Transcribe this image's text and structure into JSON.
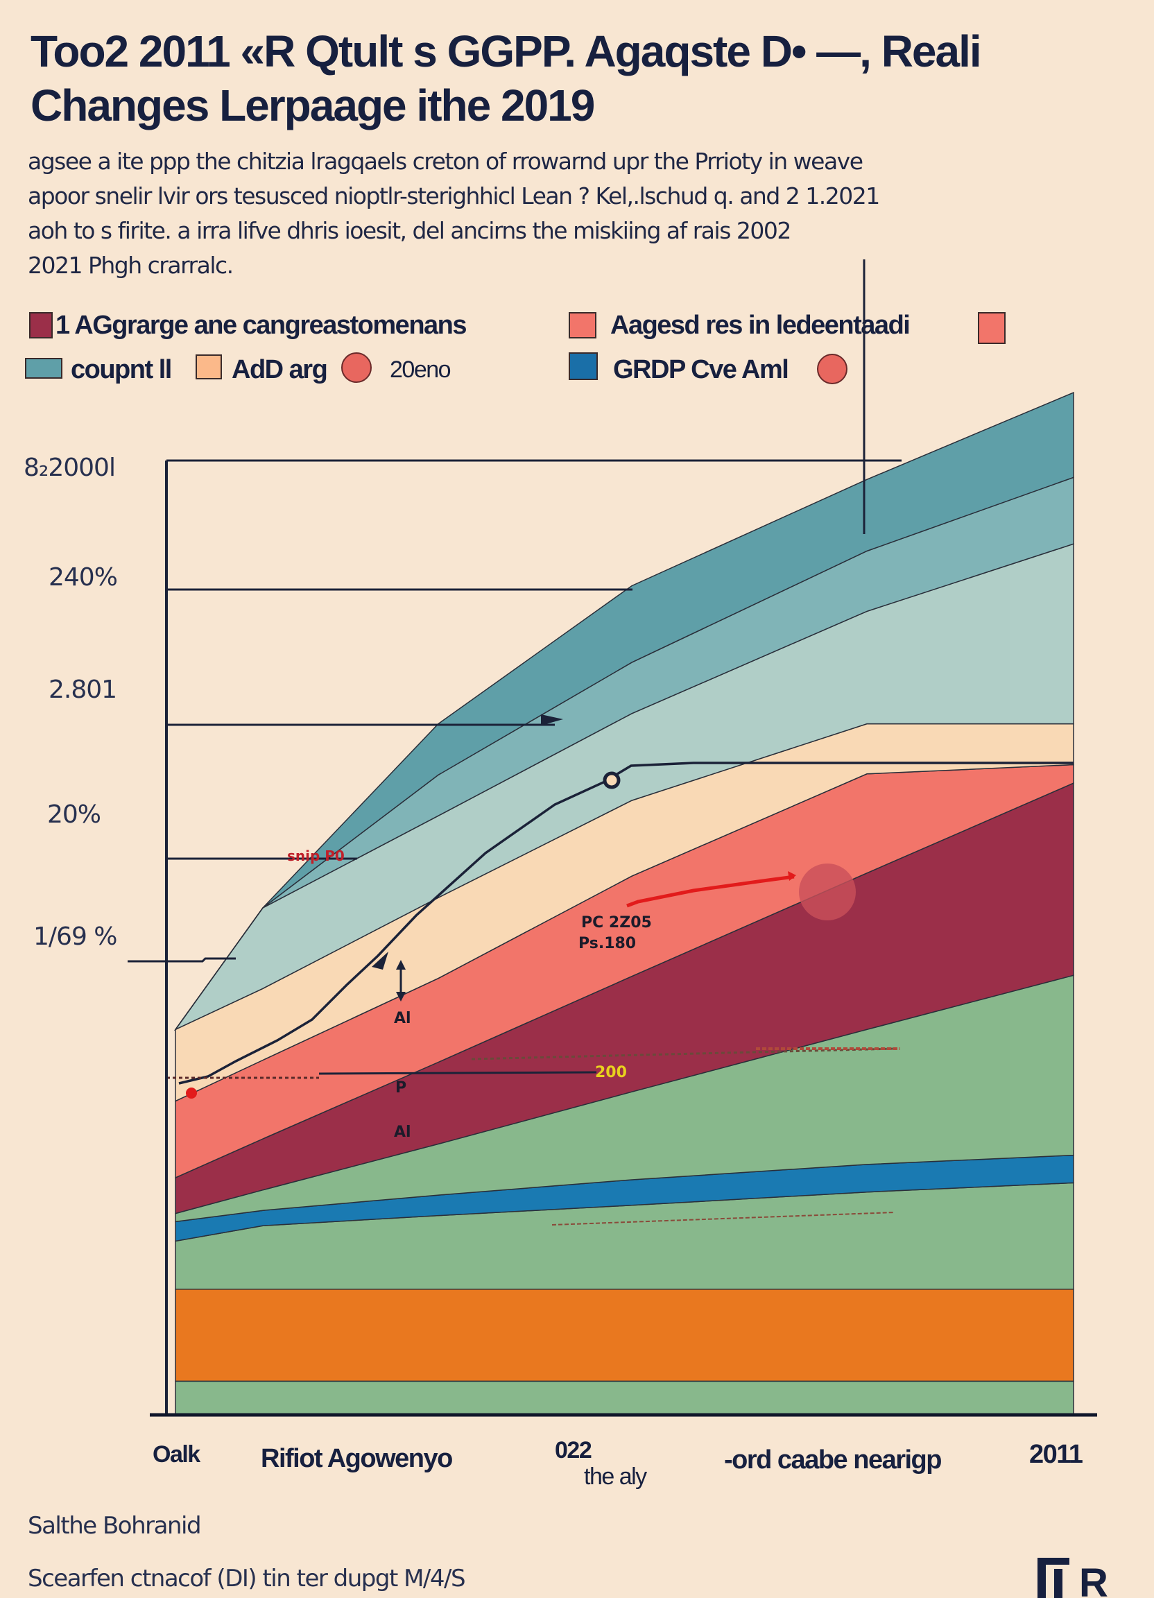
{
  "header": {
    "title_line1": "Too2 2011 «R Qtult s GGPP. Agaqste D• —, Reali",
    "title_line2": "Changes Lerpaage ithe  2019",
    "subtitle_lines": [
      "agsee a ite ppp the chitzia lragqaels creton of rrowarnd upr  the Prrioty in weave",
      "apoor snelir lvir ors tesusced nioptlr-sterighhicl Lean ?  Kel,.lschud q. and 2 1.2021",
      "aoh to s firite. a irra lifve dhris ioesit, del ancirns the miskiing af rais 2002",
      "2021 Phgh crarralc."
    ]
  },
  "legend": {
    "items": [
      {
        "label": "1 AGgrarge ane cangreastomenans",
        "color": "#9b2f49",
        "shape": "square"
      },
      {
        "label": "Aagesd  res in ledeentaadi",
        "color": "#f2756a",
        "shape": "square"
      },
      {
        "label": "coupnt ll",
        "color": "#5f9fa8",
        "shape": "square"
      },
      {
        "label": "AdD arg",
        "color": "#fbb98a",
        "shape": "square"
      },
      {
        "label": "20eno",
        "color": "#e8675f",
        "shape": "circle"
      },
      {
        "label": "GRDP Cve Aml",
        "color": "#1a6fa8",
        "shape": "square"
      }
    ],
    "extra_swatch_color": "#f2756a",
    "extra_circle_color": "#e8675f"
  },
  "chart_data": {
    "type": "area",
    "stacked": true,
    "title": "",
    "y_tick_labels": [
      "8₂2000l",
      "240%",
      "2.801",
      "20%",
      "1/69 %"
    ],
    "x_tick_labels": [
      "Oalk",
      "Rifiot Agowenyo",
      "022",
      "the aly",
      "-ord caabe nearigp",
      "2011"
    ],
    "grid": "partial horizontal lines",
    "legend_position": "top",
    "layer_tops_note_scale": [
      0,
      100
    ],
    "layers": [
      {
        "color": "#88b88c",
        "top": [
          3.3,
          3.3,
          3.3,
          3.3,
          3.3,
          3.3
        ]
      },
      {
        "color": "#e9781f",
        "top": [
          12.3,
          12.3,
          12.3,
          12.3,
          12.3,
          12.3
        ]
      },
      {
        "color": "#88b88c",
        "top": [
          17,
          18.5,
          19.5,
          20.5,
          21.8,
          22.7
        ]
      },
      {
        "color": "#1a7ab2",
        "top": [
          18.9,
          20,
          21.5,
          23,
          24.5,
          25.4
        ]
      },
      {
        "color": "#88b88c",
        "top": [
          19.7,
          22,
          26.5,
          31.6,
          37.7,
          43
        ]
      },
      {
        "color": "#9b2f49",
        "top": [
          23.2,
          27,
          34.5,
          42.9,
          53,
          61.8
        ]
      },
      {
        "color": "#f2756a",
        "top": [
          30.7,
          34.7,
          42.7,
          52.7,
          62.7,
          63.6
        ]
      },
      {
        "color": "#f9d9b5",
        "top": [
          37.7,
          41.7,
          50.6,
          60.1,
          67.6,
          67.6
        ]
      },
      {
        "color": "#b0cec7",
        "top": [
          37.7,
          49.6,
          58.6,
          68.6,
          78.6,
          85.2
        ]
      },
      {
        "color": "#80b4b7",
        "top": [
          37.7,
          49.6,
          62.6,
          73.6,
          84.5,
          91.7
        ]
      },
      {
        "color": "#5f9fa8",
        "top": [
          37.7,
          49.6,
          67.6,
          81.1,
          91.5,
          100
        ]
      }
    ],
    "annotations": [
      "snip P0",
      "PC 2Z05",
      "Ps.180",
      "Al",
      "P",
      "Al",
      "200"
    ]
  },
  "footer": {
    "source_line1": "Salthe Bohranid",
    "source_line2": "Scearfen ctnacof (DI) tin ter dupgt M/4/S",
    "logo_text": "FR"
  },
  "colors": {
    "background": "#f8e6d2",
    "text": "#17203f",
    "highlight": "#e8d21e"
  }
}
